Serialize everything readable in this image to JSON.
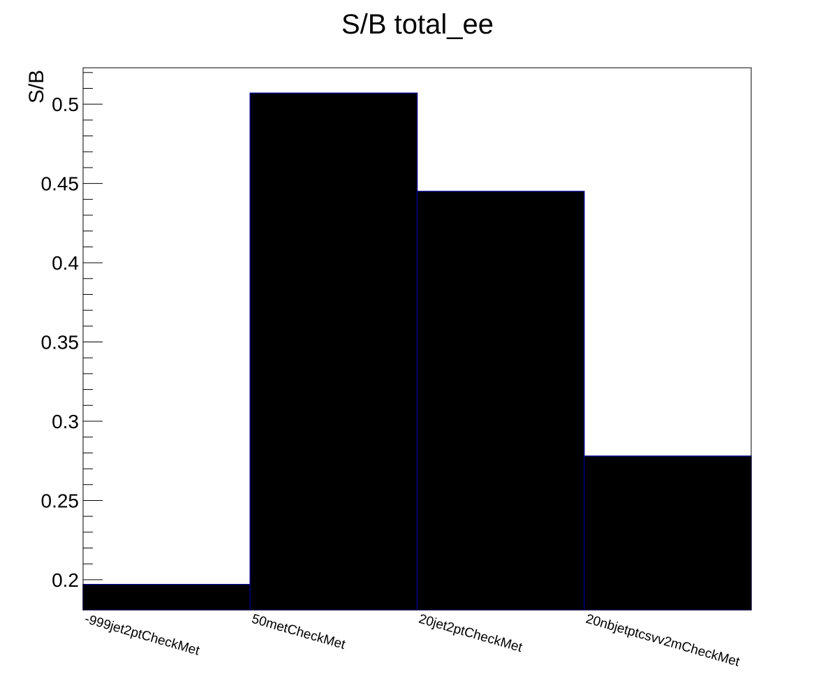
{
  "chart_data": {
    "type": "bar",
    "title": "S/B total_ee",
    "ylabel": "S/B",
    "xlabel": "",
    "categories": [
      "-999jet2ptCheckMet",
      "50metCheckMet",
      "20jet2ptCheckMet",
      "20nbjetptcsvv2mCheckMet"
    ],
    "values": [
      0.197,
      0.507,
      0.445,
      0.278
    ],
    "ylim": [
      0.181,
      0.523
    ],
    "yticks": [
      0.2,
      0.25,
      0.3,
      0.35,
      0.4,
      0.45,
      0.5
    ],
    "ytick_labels": [
      "0.2",
      "0.25",
      "0.3",
      "0.35",
      "0.4",
      "0.45",
      "0.5"
    ],
    "bar_color": "#000000",
    "bar_edge_color": "#000080",
    "grid": false,
    "legend": "none"
  }
}
